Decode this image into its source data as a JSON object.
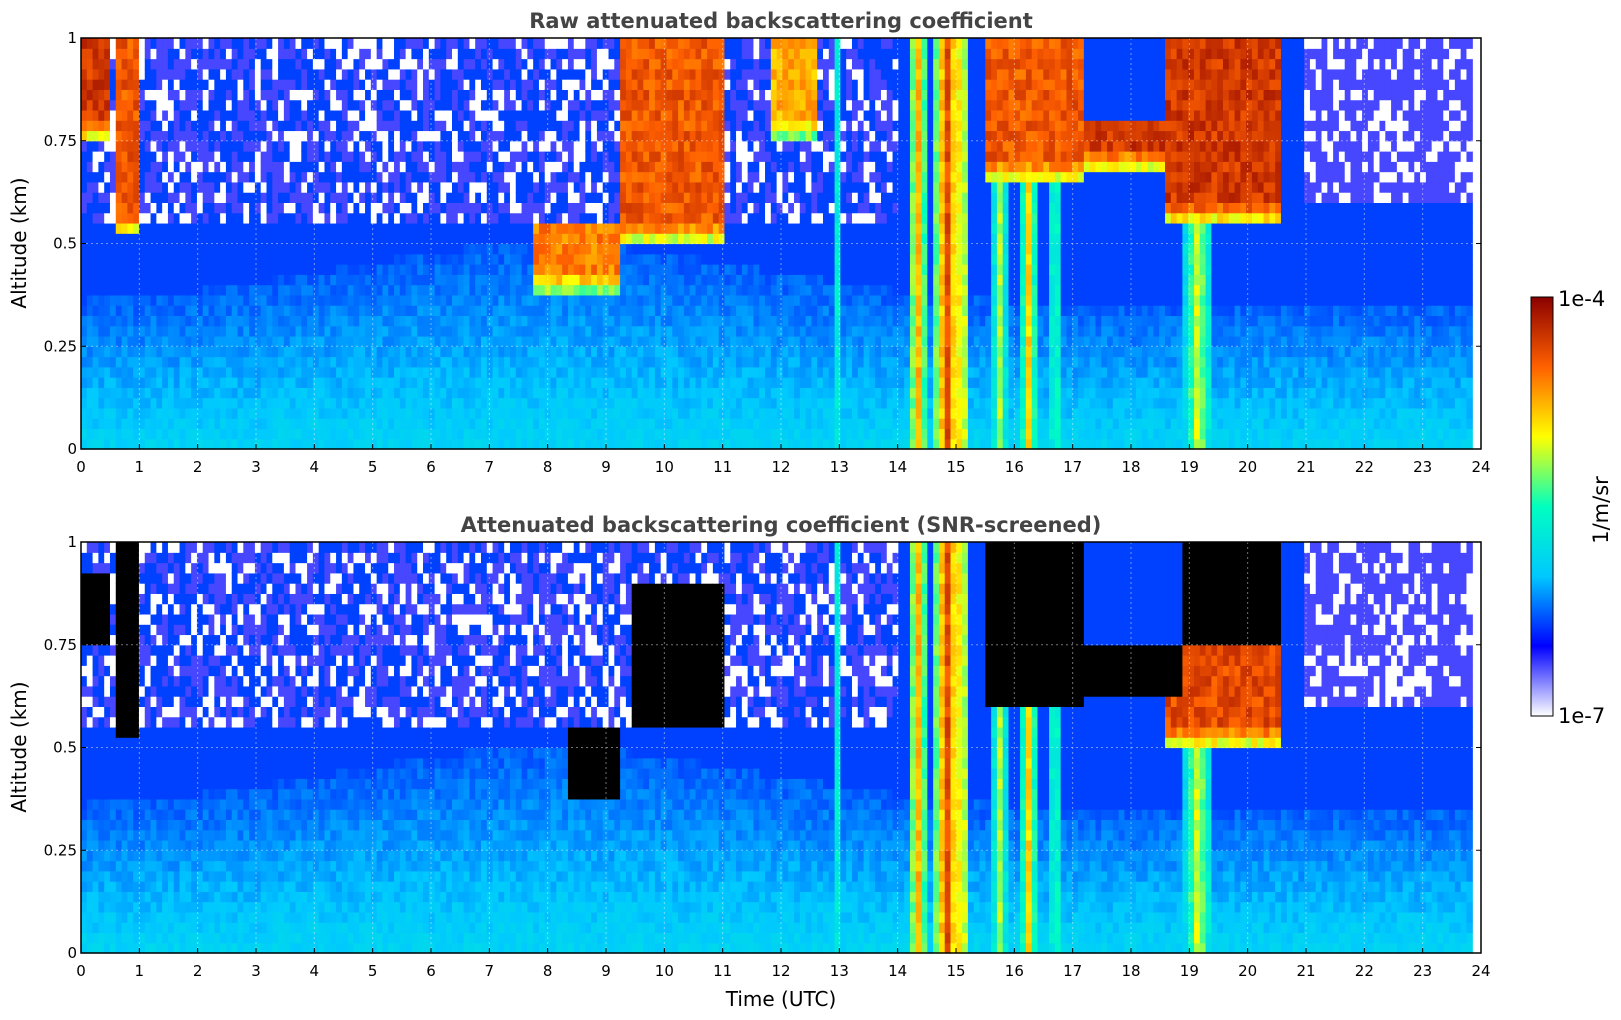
{
  "chart_data": [
    {
      "type": "heatmap",
      "title": "Raw attenuated backscattering coefficient",
      "xlabel": "",
      "ylabel": "Altitude (km)",
      "xlim": [
        0,
        24
      ],
      "ylim": [
        0,
        1
      ],
      "xticks": [
        "0",
        "1",
        "2",
        "3",
        "4",
        "5",
        "6",
        "7",
        "8",
        "9",
        "10",
        "11",
        "12",
        "13",
        "14",
        "15",
        "16",
        "17",
        "18",
        "19",
        "20",
        "21",
        "22",
        "23",
        "24"
      ],
      "yticks": [
        "0",
        "0.25",
        "0.5",
        "0.75",
        "1"
      ],
      "grid": true,
      "data_extent_hours": 23.85,
      "background_level": 0.22,
      "cloud_layers": [
        {
          "start": 0.0,
          "end": 0.5,
          "base": 0.75,
          "top": 1.0,
          "level": 0.95
        },
        {
          "start": 0.6,
          "end": 1.0,
          "base": 0.52,
          "top": 1.0,
          "level": 0.9
        },
        {
          "start": 7.8,
          "end": 9.2,
          "base": 0.38,
          "top": 0.55,
          "level": 0.85
        },
        {
          "start": 9.2,
          "end": 11.0,
          "base": 0.5,
          "top": 1.0,
          "level": 0.9
        },
        {
          "start": 11.8,
          "end": 12.6,
          "base": 0.75,
          "top": 1.0,
          "level": 0.8
        },
        {
          "start": 15.5,
          "end": 17.2,
          "base": 0.65,
          "top": 1.0,
          "level": 0.9
        },
        {
          "start": 17.2,
          "end": 18.8,
          "base": 0.68,
          "top": 0.8,
          "level": 0.95
        },
        {
          "start": 18.6,
          "end": 20.6,
          "base": 0.55,
          "top": 1.0,
          "level": 0.95
        }
      ],
      "precip_shafts": [
        {
          "center": 14.35,
          "width": 0.35,
          "level": 0.8
        },
        {
          "center": 14.85,
          "width": 0.5,
          "level": 0.92
        },
        {
          "center": 15.1,
          "width": 0.15,
          "level": 0.98
        },
        {
          "center": 15.75,
          "width": 0.3,
          "level": 0.65
        },
        {
          "center": 16.25,
          "width": 0.3,
          "level": 0.75
        },
        {
          "center": 16.7,
          "width": 0.25,
          "level": 0.6
        },
        {
          "center": 19.15,
          "width": 0.5,
          "level": 0.7
        },
        {
          "center": 12.95,
          "width": 0.12,
          "level": 0.55
        }
      ]
    },
    {
      "type": "heatmap",
      "title": "Attenuated backscattering coefficient (SNR-screened)",
      "xlabel": "Time (UTC)",
      "ylabel": "Altitude (km)",
      "xlim": [
        0,
        24
      ],
      "ylim": [
        0,
        1
      ],
      "xticks": [
        "0",
        "1",
        "2",
        "3",
        "4",
        "5",
        "6",
        "7",
        "8",
        "9",
        "10",
        "11",
        "12",
        "13",
        "14",
        "15",
        "16",
        "17",
        "18",
        "19",
        "20",
        "21",
        "22",
        "23",
        "24"
      ],
      "yticks": [
        "0",
        "0.25",
        "0.5",
        "0.75",
        "1"
      ],
      "grid": true,
      "data_extent_hours": 23.85,
      "background_level": 0.22,
      "cloud_layers": [
        {
          "start": 0.0,
          "end": 0.5,
          "base": 0.75,
          "top": 0.92,
          "level": 1.05
        },
        {
          "start": 0.6,
          "end": 1.0,
          "base": 0.52,
          "top": 1.0,
          "level": 1.05
        },
        {
          "start": 8.3,
          "end": 9.2,
          "base": 0.38,
          "top": 0.55,
          "level": 1.05
        },
        {
          "start": 9.4,
          "end": 11.0,
          "base": 0.55,
          "top": 0.9,
          "level": 1.05
        },
        {
          "start": 15.5,
          "end": 17.2,
          "base": 0.6,
          "top": 1.0,
          "level": 1.05
        },
        {
          "start": 17.2,
          "end": 18.9,
          "base": 0.63,
          "top": 0.76,
          "level": 1.05
        },
        {
          "start": 18.9,
          "end": 20.6,
          "base": 0.75,
          "top": 1.0,
          "level": 1.05
        },
        {
          "start": 18.6,
          "end": 20.6,
          "base": 0.5,
          "top": 0.75,
          "level": 0.92
        }
      ],
      "precip_shafts": [
        {
          "center": 14.35,
          "width": 0.35,
          "level": 0.8
        },
        {
          "center": 14.85,
          "width": 0.5,
          "level": 0.92
        },
        {
          "center": 15.1,
          "width": 0.15,
          "level": 0.98
        },
        {
          "center": 15.75,
          "width": 0.3,
          "level": 0.65
        },
        {
          "center": 16.25,
          "width": 0.3,
          "level": 0.75
        },
        {
          "center": 16.7,
          "width": 0.25,
          "level": 0.6
        },
        {
          "center": 19.15,
          "width": 0.5,
          "level": 0.7
        },
        {
          "center": 12.95,
          "width": 0.12,
          "level": 0.55
        }
      ]
    }
  ],
  "colorbar": {
    "label": "1/m/sr",
    "min_label": "1e-7",
    "max_label": "1e-4",
    "colormap": "jet",
    "colors": [
      "#ffffff",
      "#0000ff",
      "#00c8ff",
      "#00ffc0",
      "#ffff00",
      "#ff6000",
      "#8b0000"
    ]
  }
}
